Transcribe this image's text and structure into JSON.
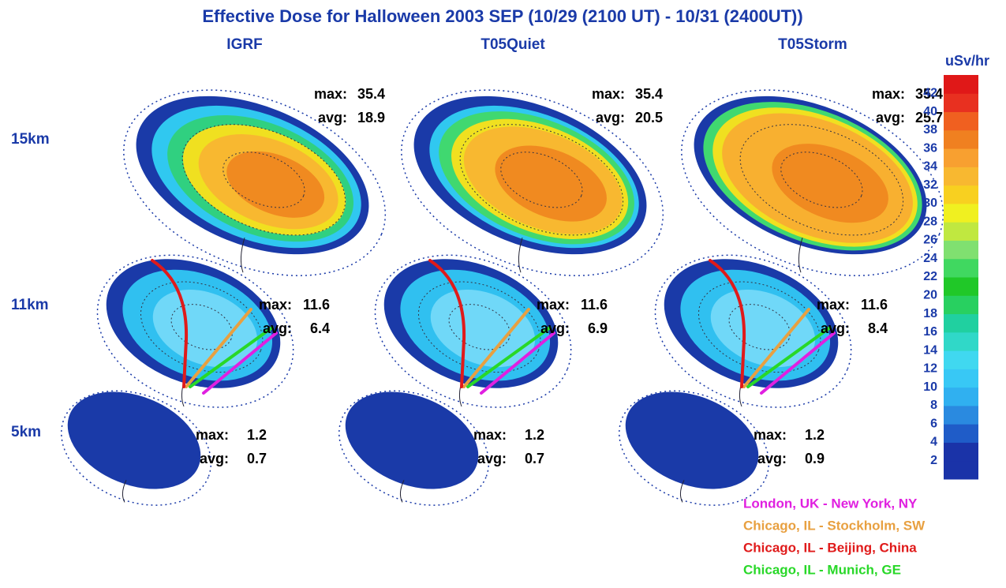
{
  "title": "Effective Dose for Halloween 2003 SEP (10/29 (2100 UT) - 10/31 (2400UT))",
  "columns": [
    "IGRF",
    "T05Quiet",
    "T05Storm"
  ],
  "stat_labels": [
    "max:",
    "avg:"
  ],
  "rows": [
    {
      "label": "15km",
      "panels": [
        {
          "max": 35.4,
          "avg": 18.9
        },
        {
          "max": 35.4,
          "avg": 20.5
        },
        {
          "max": 35.4,
          "avg": 25.7
        }
      ]
    },
    {
      "label": "11km",
      "panels": [
        {
          "max": 11.6,
          "avg": 6.4
        },
        {
          "max": 11.6,
          "avg": 6.9
        },
        {
          "max": 11.6,
          "avg": 8.4
        }
      ]
    },
    {
      "label": "5km",
      "panels": [
        {
          "max": 1.2,
          "avg": 0.7
        },
        {
          "max": 1.2,
          "avg": 0.7
        },
        {
          "max": 1.2,
          "avg": 0.9
        }
      ]
    }
  ],
  "colorbar": {
    "unit": "uSv/hr",
    "range": [
      0,
      44
    ],
    "ticks": [
      2,
      4,
      6,
      8,
      10,
      12,
      14,
      16,
      18,
      20,
      22,
      24,
      26,
      28,
      30,
      32,
      34,
      36,
      38,
      40,
      42
    ],
    "colors": [
      "#1a33a8",
      "#1a33a8",
      "#1f5cc8",
      "#2a8ae0",
      "#30b0f0",
      "#38c8f5",
      "#40d8f0",
      "#30d8c8",
      "#20d0a0",
      "#28d060",
      "#20c828",
      "#40d860",
      "#80e070",
      "#c0e840",
      "#f0f020",
      "#f8d020",
      "#f8b830",
      "#f8a030",
      "#f08020",
      "#f06020",
      "#e83020",
      "#e01818"
    ]
  },
  "routes": [
    {
      "name": "London, UK - New York, NY",
      "color": "#e020e0"
    },
    {
      "name": "Chicago, IL - Stockholm, SW",
      "color": "#e8a040"
    },
    {
      "name": "Chicago, IL - Beijing, China",
      "color": "#e01a1a"
    },
    {
      "name": "Chicago, IL - Munich, GE",
      "color": "#28d828"
    }
  ]
}
